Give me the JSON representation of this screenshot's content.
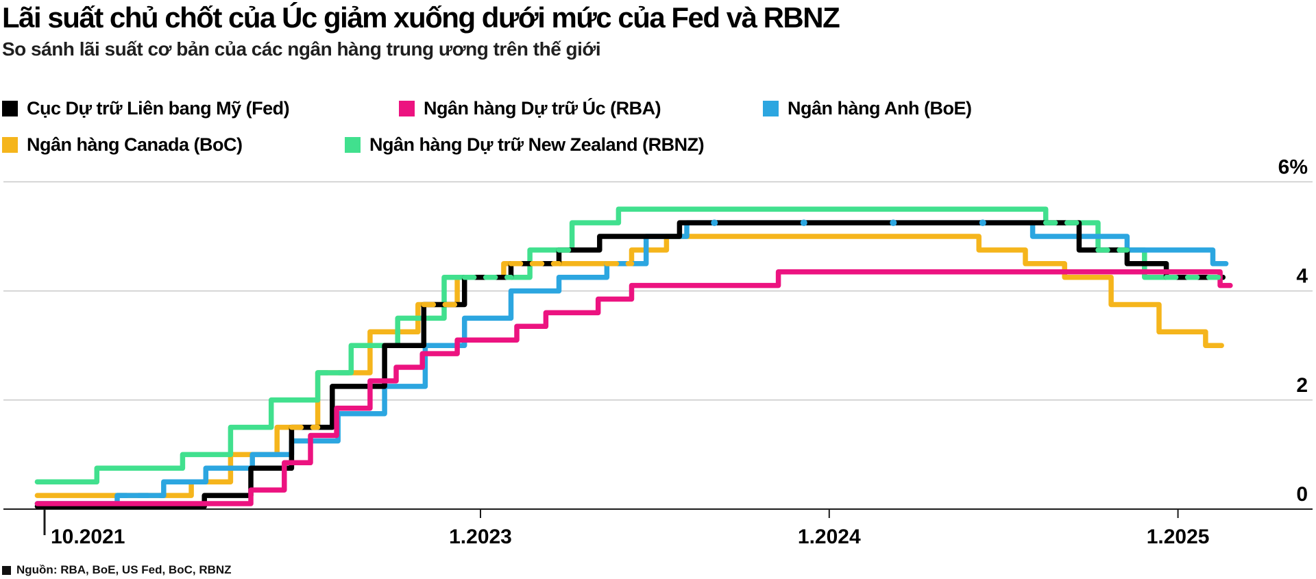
{
  "header": {
    "title": "Lãi suất chủ chốt của Úc giảm xuống dưới mức của Fed và RBNZ",
    "subtitle": "So sánh lãi suất cơ bản của các ngân hàng trung ương trên thế giới"
  },
  "footer": {
    "source": "Nguồn: RBA, BoE, US Fed, BoC, RBNZ",
    "source_bullet_icon": "black-square-icon"
  },
  "colors": {
    "fed": "#000000",
    "rba": "#EC1380",
    "boe": "#2CA6E0",
    "boc": "#F5B51C",
    "rbnz": "#41E08E",
    "gridline": "#c8c8c8",
    "axis": "#1a1a1a"
  },
  "legend": {
    "items": [
      {
        "key": "fed",
        "label": "Cục Dự trữ Liên bang Mỹ (Fed)",
        "color": "#000000"
      },
      {
        "key": "rba",
        "label": "Ngân hàng Dự trữ Úc (RBA)",
        "color": "#EC1380"
      },
      {
        "key": "boe",
        "label": "Ngân hàng Anh (BoE)",
        "color": "#2CA6E0"
      },
      {
        "key": "boc",
        "label": "Ngân hàng Canada (BoC)",
        "color": "#F5B51C"
      },
      {
        "key": "rbnz",
        "label": "Ngân hàng Dự trữ New Zealand (RBNZ)",
        "color": "#41E08E"
      }
    ]
  },
  "chart_data": {
    "type": "line",
    "style": "step",
    "title": "Lãi suất chủ chốt của Úc giảm xuống dưới mức của Fed và RBNZ",
    "subtitle": "So sánh lãi suất cơ bản của các ngân hàng trung ương trên thế giới",
    "xlabel": "",
    "ylabel": "%",
    "ylim": [
      0,
      6
    ],
    "grid": "horizontal",
    "legend_position": "top",
    "x_unit": "months since 10.2021",
    "y_ticks": [
      {
        "value": 6,
        "label": "6%"
      },
      {
        "value": 4,
        "label": "4"
      },
      {
        "value": 2,
        "label": "2"
      },
      {
        "value": 0,
        "label": "0"
      }
    ],
    "x_ticks": [
      {
        "month": 0,
        "label": "10.2021",
        "boundary": true
      },
      {
        "month": 15,
        "label": "1.2023",
        "boundary": false
      },
      {
        "month": 27,
        "label": "1.2024",
        "boundary": false
      },
      {
        "month": 39,
        "label": "1.2025",
        "boundary": false
      }
    ],
    "series": [
      {
        "key": "boc",
        "name": "Ngân hàng Canada (BoC)",
        "color": "#F5B51C",
        "end_month": 40.5,
        "steps": [
          [
            -0.25,
            0.25
          ],
          [
            5.05,
            0.5
          ],
          [
            6.4,
            1.0
          ],
          [
            8.0,
            1.5
          ],
          [
            9.4,
            2.5
          ],
          [
            11.2,
            3.25
          ],
          [
            12.85,
            3.75
          ],
          [
            14.2,
            4.25
          ],
          [
            15.8,
            4.5
          ],
          [
            20.2,
            4.75
          ],
          [
            21.4,
            5.0
          ],
          [
            32.15,
            4.75
          ],
          [
            33.75,
            4.5
          ],
          [
            35.1,
            4.25
          ],
          [
            36.7,
            3.75
          ],
          [
            38.35,
            3.25
          ],
          [
            39.95,
            3.0
          ]
        ]
      },
      {
        "key": "rbnz",
        "name": "Ngân hàng Dự trữ New Zealand (RBNZ)",
        "color": "#41E08E",
        "end_month": 40.55,
        "steps": [
          [
            -0.25,
            0.5
          ],
          [
            1.8,
            0.75
          ],
          [
            4.75,
            1.0
          ],
          [
            6.4,
            1.5
          ],
          [
            7.8,
            2.0
          ],
          [
            9.4,
            2.5
          ],
          [
            10.55,
            3.0
          ],
          [
            12.15,
            3.5
          ],
          [
            13.75,
            4.25
          ],
          [
            16.7,
            4.75
          ],
          [
            18.15,
            5.25
          ],
          [
            19.75,
            5.5
          ],
          [
            34.45,
            5.25
          ],
          [
            36.25,
            4.75
          ],
          [
            37.85,
            4.25
          ]
        ]
      },
      {
        "key": "boe",
        "name": "Ngân hàng Anh (BoE)",
        "color": "#2CA6E0",
        "end_month": 40.65,
        "steps": [
          [
            -0.25,
            0.1
          ],
          [
            2.5,
            0.25
          ],
          [
            4.1,
            0.5
          ],
          [
            5.55,
            0.75
          ],
          [
            7.15,
            1.0
          ],
          [
            8.5,
            1.25
          ],
          [
            10.1,
            1.75
          ],
          [
            11.7,
            2.25
          ],
          [
            13.1,
            3.0
          ],
          [
            14.45,
            3.5
          ],
          [
            16.05,
            4.0
          ],
          [
            17.7,
            4.25
          ],
          [
            19.35,
            4.5
          ],
          [
            20.7,
            5.0
          ],
          [
            22.1,
            5.25
          ],
          [
            34.0,
            5.0
          ],
          [
            37.25,
            4.75
          ],
          [
            40.2,
            4.5
          ]
        ]
      },
      {
        "key": "fed",
        "name": "Cục Dự trữ Liên bang Mỹ (Fed)",
        "color": "#000000",
        "end_month": 40.55,
        "steps": [
          [
            -0.25,
            0.05
          ],
          [
            5.5,
            0.25
          ],
          [
            7.1,
            0.75
          ],
          [
            8.5,
            1.5
          ],
          [
            9.9,
            2.25
          ],
          [
            11.7,
            3.0
          ],
          [
            13.05,
            3.75
          ],
          [
            14.45,
            4.25
          ],
          [
            16.05,
            4.5
          ],
          [
            17.7,
            4.75
          ],
          [
            19.1,
            5.0
          ],
          [
            21.85,
            5.25
          ],
          [
            35.6,
            4.75
          ],
          [
            37.25,
            4.5
          ],
          [
            38.6,
            4.25
          ]
        ]
      },
      {
        "key": "rba",
        "name": "Ngân hàng Dự trữ Úc (RBA)",
        "color": "#EC1380",
        "end_month": 40.8,
        "steps": [
          [
            -0.25,
            0.1
          ],
          [
            7.1,
            0.35
          ],
          [
            8.25,
            0.85
          ],
          [
            9.15,
            1.35
          ],
          [
            10.05,
            1.85
          ],
          [
            11.2,
            2.35
          ],
          [
            12.1,
            2.6
          ],
          [
            13.0,
            2.85
          ],
          [
            14.2,
            3.1
          ],
          [
            16.25,
            3.35
          ],
          [
            17.25,
            3.6
          ],
          [
            19.05,
            3.85
          ],
          [
            20.2,
            4.1
          ],
          [
            25.25,
            4.35
          ],
          [
            40.45,
            4.1
          ]
        ]
      }
    ],
    "overlaps": [
      {
        "value": 0.25,
        "from_month": 2.5,
        "to_month": 4.1,
        "color": "#2CA6E0",
        "style": "dash",
        "note": "BoE over BoC"
      },
      {
        "value": 1.5,
        "from_month": 8.5,
        "to_month": 9.4,
        "color": "#F5B51C",
        "style": "dash",
        "note": "BoC over Fed"
      },
      {
        "value": 2.5,
        "from_month": 9.4,
        "to_month": 10.55,
        "color": "#41E08E",
        "style": "dash",
        "note": "RBNZ over BoC"
      },
      {
        "value": 3.75,
        "from_month": 13.05,
        "to_month": 14.2,
        "color": "#F5B51C",
        "style": "dash",
        "note": "BoC over Fed"
      },
      {
        "value": 4.25,
        "from_month": 14.45,
        "to_month": 16.05,
        "color": "#41E08E",
        "style": "dash",
        "note": "RBNZ over Fed"
      },
      {
        "value": 4.5,
        "from_month": 16.05,
        "to_month": 17.7,
        "color": "#F5B51C",
        "style": "dash",
        "note": "BoC over Fed"
      },
      {
        "value": 4.75,
        "from_month": 17.7,
        "to_month": 18.15,
        "color": "#41E08E",
        "style": "dash",
        "note": "RBNZ over Fed"
      },
      {
        "value": 4.5,
        "from_month": 19.35,
        "to_month": 20.2,
        "color": "#F5B51C",
        "style": "dash",
        "note": "BoC over BoE"
      },
      {
        "value": 5.25,
        "from_month": 22.1,
        "to_month": 34.0,
        "color": "#2CA6E0",
        "style": "dot",
        "note": "BoE over Fed"
      },
      {
        "value": 5.25,
        "from_month": 34.45,
        "to_month": 35.6,
        "color": "#41E08E",
        "style": "dash",
        "note": "RBNZ over Fed"
      },
      {
        "value": 4.75,
        "from_month": 36.25,
        "to_month": 37.25,
        "color": "#41E08E",
        "style": "dash",
        "note": "RBNZ over Fed"
      },
      {
        "value": 4.25,
        "from_month": 38.6,
        "to_month": 40.55,
        "color": "#41E08E",
        "style": "dash",
        "note": "RBNZ over Fed"
      }
    ]
  }
}
